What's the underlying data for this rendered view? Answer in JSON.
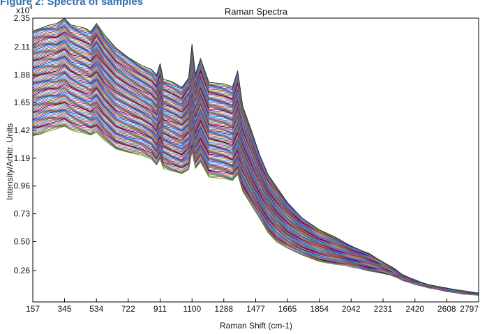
{
  "header_fragment": "Figure 2: Spectra of samples",
  "chart_data": {
    "type": "line",
    "title": "Raman Spectra",
    "xlabel": "Raman Shift (cm-1)",
    "ylabel": "Intensity/Arbitr. Units",
    "y_exponent_label": "x10",
    "y_exponent_power": "4",
    "x_ticks": [
      "157",
      "345",
      "534",
      "722",
      "911",
      "1100",
      "1288",
      "1477",
      "1665",
      "1854",
      "2042",
      "2231",
      "2420",
      "2608",
      "2797"
    ],
    "y_ticks": [
      "0.26",
      "0.50",
      "0.73",
      "0.96",
      "1.19",
      "1.42",
      "1.65",
      "1.88",
      "2.11",
      "2.35"
    ],
    "xlim": [
      157,
      2797
    ],
    "ylim": [
      0.0,
      2.35
    ],
    "grid": false,
    "legend": "none",
    "series_count_estimate": 100,
    "x": [
      157,
      200,
      250,
      300,
      345,
      380,
      420,
      470,
      500,
      534,
      580,
      650,
      722,
      800,
      860,
      890,
      911,
      930,
      980,
      1040,
      1080,
      1100,
      1120,
      1150,
      1200,
      1288,
      1340,
      1370,
      1400,
      1450,
      1500,
      1550,
      1600,
      1665,
      1750,
      1854,
      1950,
      2042,
      2150,
      2231,
      2300,
      2350,
      2420,
      2500,
      2608,
      2700,
      2797
    ],
    "upper_envelope": [
      2.24,
      2.27,
      2.29,
      2.3,
      2.35,
      2.3,
      2.28,
      2.26,
      2.24,
      2.31,
      2.21,
      2.1,
      2.03,
      1.96,
      1.92,
      1.88,
      1.98,
      1.84,
      1.82,
      1.78,
      1.86,
      2.13,
      1.88,
      2.02,
      1.82,
      1.8,
      1.78,
      1.92,
      1.62,
      1.42,
      1.22,
      1.06,
      0.95,
      0.82,
      0.7,
      0.6,
      0.53,
      0.46,
      0.4,
      0.33,
      0.27,
      0.22,
      0.18,
      0.14,
      0.11,
      0.09,
      0.07
    ],
    "lower_envelope": [
      1.37,
      1.39,
      1.42,
      1.43,
      1.45,
      1.43,
      1.41,
      1.39,
      1.38,
      1.41,
      1.34,
      1.26,
      1.24,
      1.22,
      1.18,
      1.13,
      1.19,
      1.11,
      1.08,
      1.06,
      1.1,
      1.25,
      1.1,
      1.16,
      1.04,
      1.02,
      1.0,
      1.06,
      0.92,
      0.8,
      0.69,
      0.58,
      0.5,
      0.44,
      0.39,
      0.34,
      0.31,
      0.29,
      0.26,
      0.24,
      0.21,
      0.18,
      0.15,
      0.12,
      0.09,
      0.07,
      0.06
    ],
    "colors": [
      "#1f1fff",
      "#e01e1e",
      "#1aa31a",
      "#d11fd1",
      "#00bcd4",
      "#ff8c00",
      "#8b2be2",
      "#111111",
      "#ff1493",
      "#228b22",
      "#4169e1",
      "#b8860b",
      "#dc143c",
      "#20b2aa",
      "#9932cc",
      "#00ced1"
    ]
  }
}
